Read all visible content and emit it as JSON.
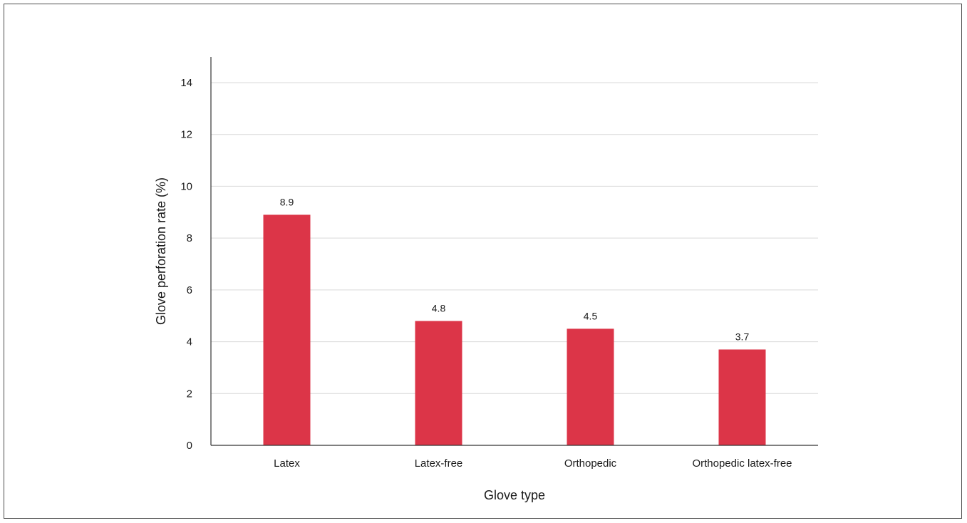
{
  "chart_data": {
    "type": "bar",
    "title": "",
    "xlabel": "Glove type",
    "ylabel": "Glove perforation rate (%)",
    "categories": [
      "Latex",
      "Latex-free",
      "Orthopedic",
      "Orthopedic latex-free"
    ],
    "values": [
      8.9,
      4.8,
      4.5,
      3.7
    ],
    "data_labels": [
      "8.9",
      "4.8",
      "4.5",
      "3.7"
    ],
    "ylim": [
      0,
      14
    ],
    "yticks": [
      0,
      2,
      4,
      6,
      8,
      10,
      12,
      14
    ],
    "grid": true,
    "legend": "none",
    "bar_color": "#dc3548",
    "grid_color": "#d9d9d9",
    "axis_color": "#333333"
  }
}
